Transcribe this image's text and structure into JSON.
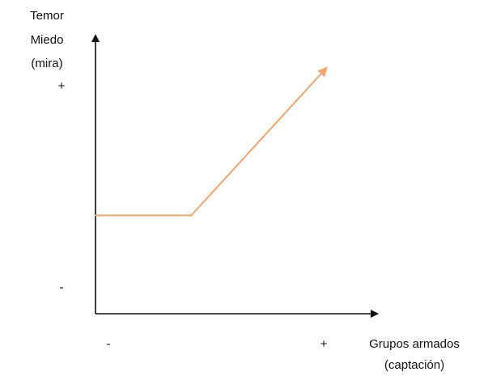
{
  "chart_data": {
    "type": "line",
    "ylabel_lines": [
      "Temor",
      "Miedo",
      "(mira)"
    ],
    "xlabel_lines": [
      "Grupos armados",
      "(captación)"
    ],
    "y_ticks": {
      "high": "+",
      "low": "-"
    },
    "x_ticks": {
      "low": "-",
      "high": "+"
    },
    "series": [
      {
        "color": "#f4a46c",
        "points": [
          [
            0,
            0.4
          ],
          [
            0.34,
            0.4
          ],
          [
            0.82,
            1.0
          ]
        ],
        "arrow_end": true
      }
    ],
    "xlim": [
      0,
      1
    ],
    "ylim": [
      0,
      1
    ],
    "grid": false,
    "legend": "none"
  }
}
